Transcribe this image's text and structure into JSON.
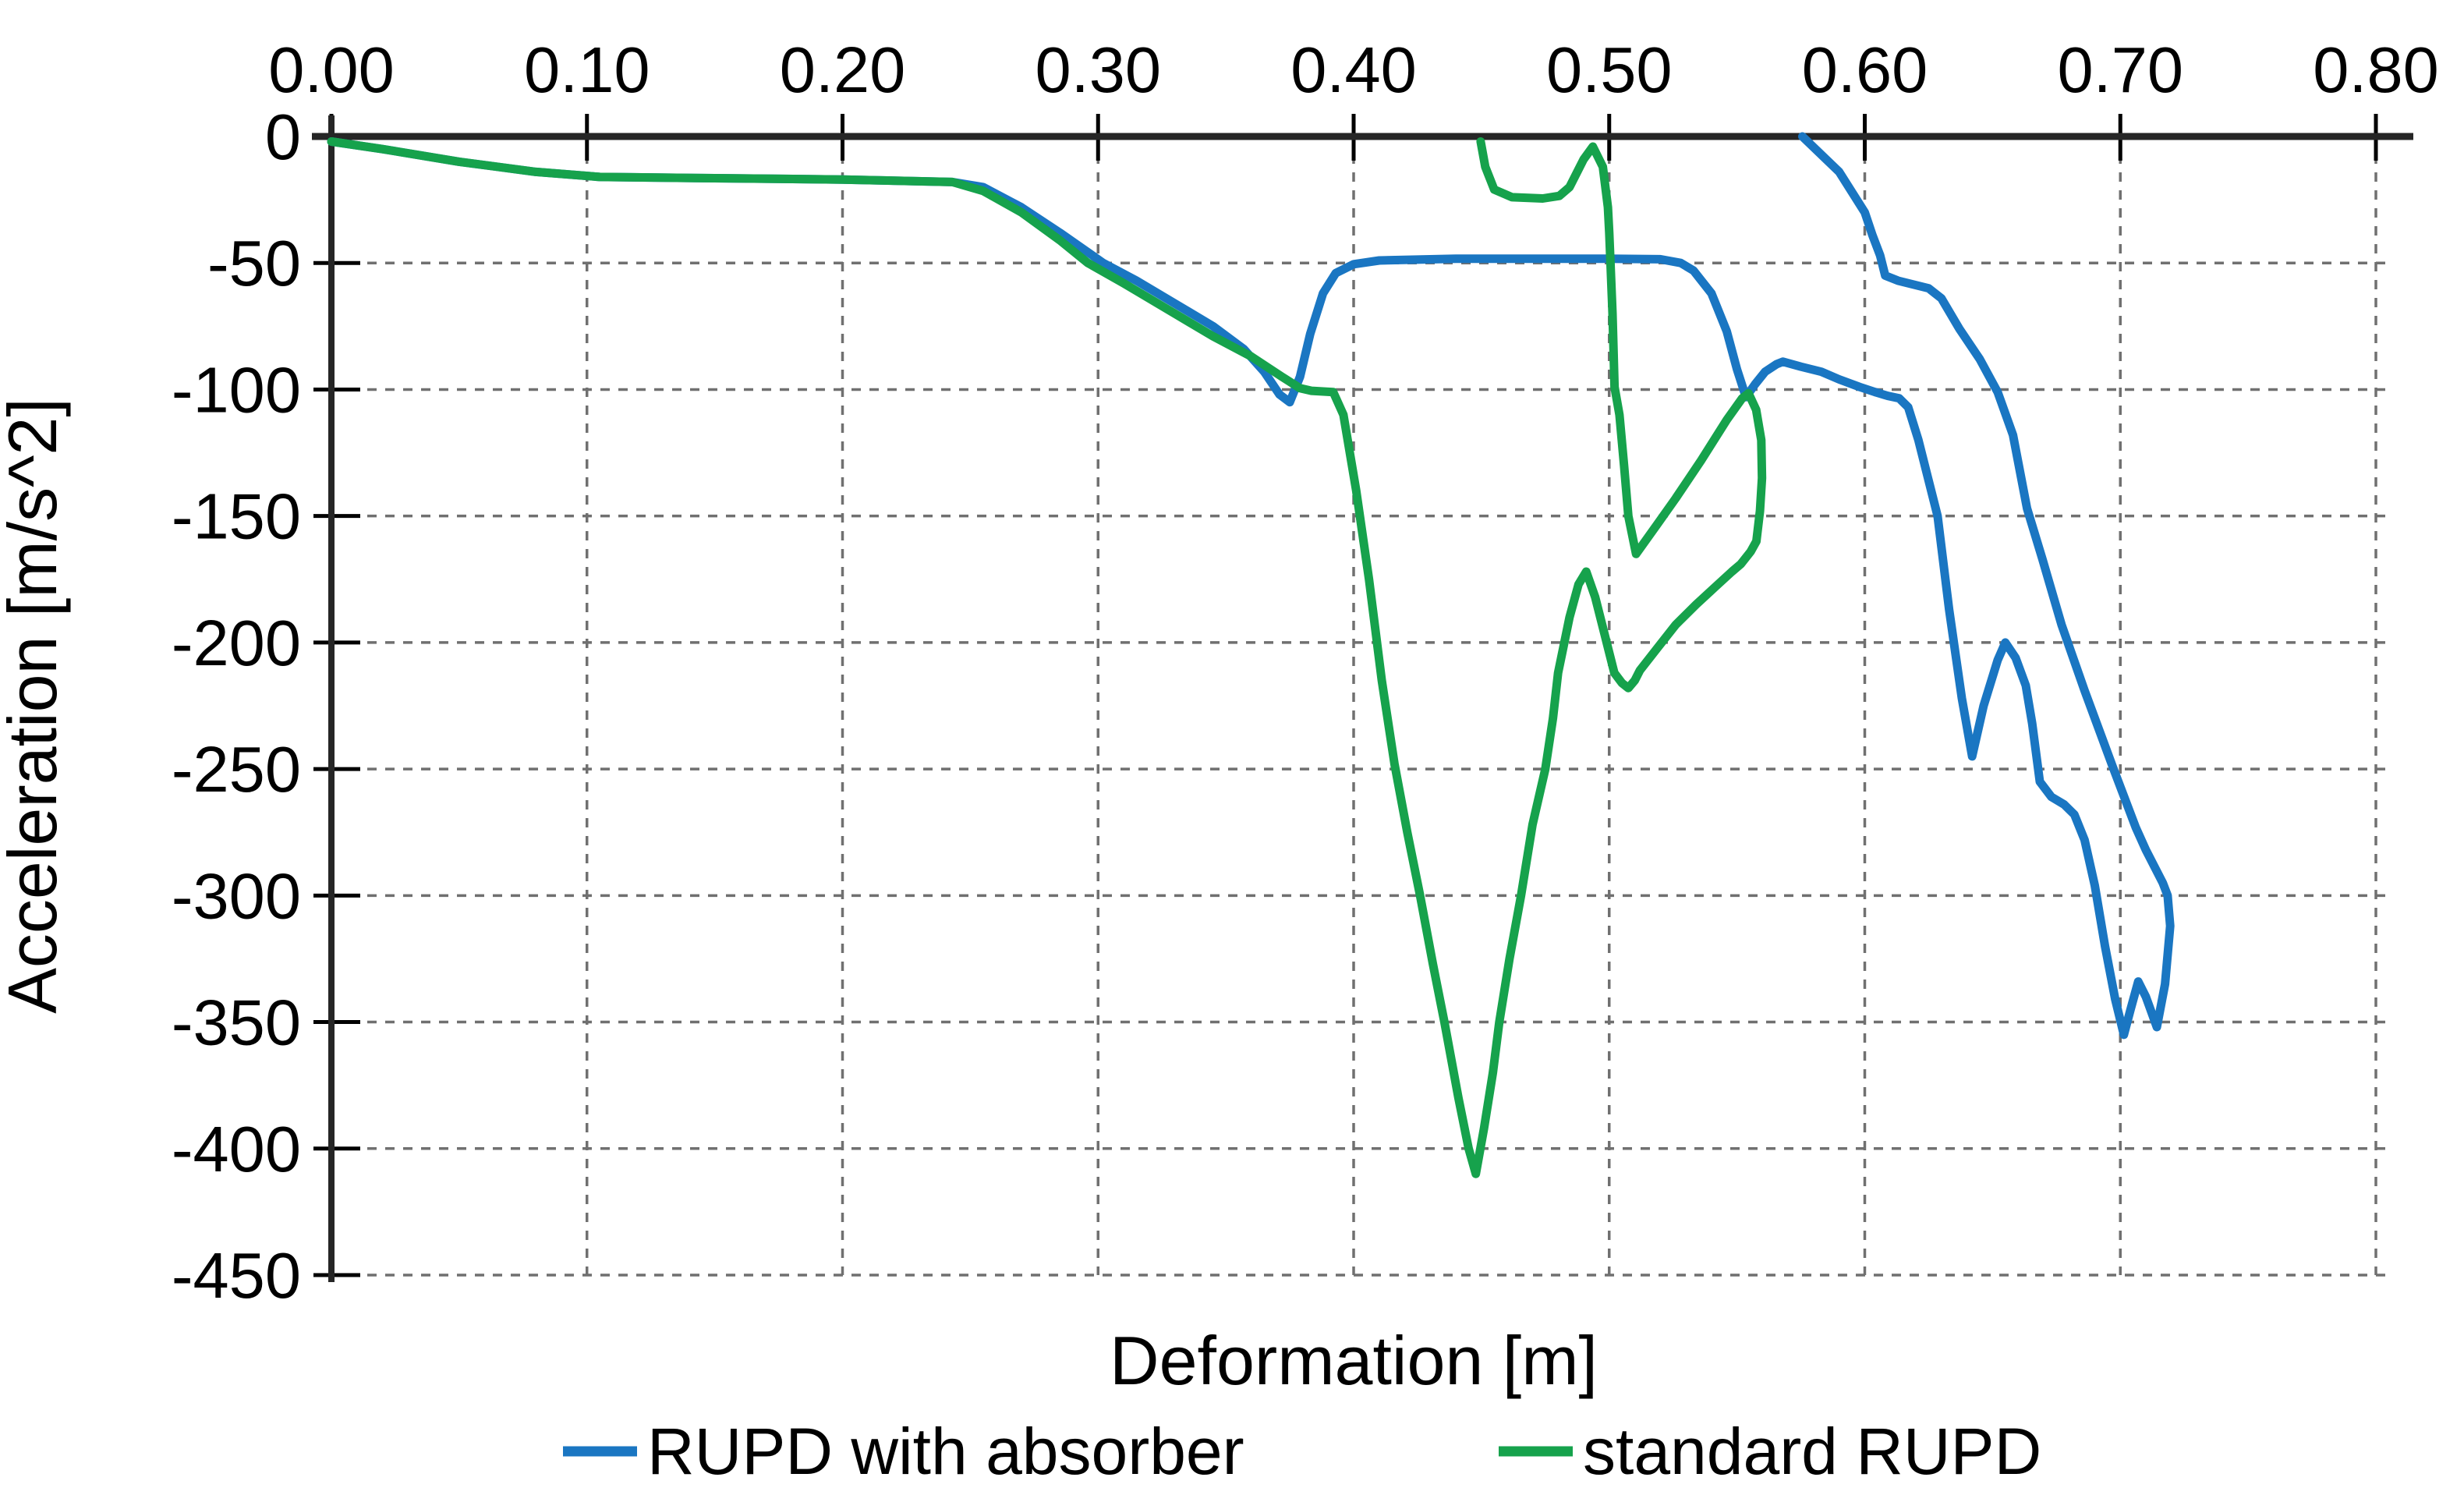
{
  "figure": {
    "background": "#ffffff",
    "grid_color": "#707070",
    "axis_color": "#262626",
    "tick_color": "#000000"
  },
  "chart_data": {
    "type": "line",
    "title": "",
    "xlabel": "Deformation [m]",
    "ylabel": "Acceleration [m/s^2]",
    "xlim": [
      0.0,
      0.8
    ],
    "ylim": [
      -450,
      0
    ],
    "grid": "dashed",
    "legend_position": "bottom",
    "x_ticks": [
      {
        "v": 0.0,
        "label": "0.00"
      },
      {
        "v": 0.1,
        "label": "0.10"
      },
      {
        "v": 0.2,
        "label": "0.20"
      },
      {
        "v": 0.3,
        "label": "0.30"
      },
      {
        "v": 0.4,
        "label": "0.40"
      },
      {
        "v": 0.5,
        "label": "0.50"
      },
      {
        "v": 0.6,
        "label": "0.60"
      },
      {
        "v": 0.7,
        "label": "0.70"
      },
      {
        "v": 0.8,
        "label": "0.80"
      }
    ],
    "y_ticks": [
      {
        "v": 0,
        "label": "0"
      },
      {
        "v": -50,
        "label": "-50"
      },
      {
        "v": -100,
        "label": "-100"
      },
      {
        "v": -150,
        "label": "-150"
      },
      {
        "v": -200,
        "label": "-200"
      },
      {
        "v": -250,
        "label": "-250"
      },
      {
        "v": -300,
        "label": "-300"
      },
      {
        "v": -350,
        "label": "-350"
      },
      {
        "v": -400,
        "label": "-400"
      },
      {
        "v": -450,
        "label": "-450"
      }
    ],
    "series": [
      {
        "name": "RUPD with absorber",
        "color": "#1a76c2",
        "points": [
          [
            0.0,
            -2
          ],
          [
            0.02,
            -5
          ],
          [
            0.05,
            -10
          ],
          [
            0.08,
            -14
          ],
          [
            0.105,
            -16
          ],
          [
            0.15,
            -16.5
          ],
          [
            0.2,
            -17
          ],
          [
            0.243,
            -18
          ],
          [
            0.255,
            -20
          ],
          [
            0.27,
            -28
          ],
          [
            0.285,
            -38
          ],
          [
            0.302,
            -50
          ],
          [
            0.315,
            -57
          ],
          [
            0.33,
            -66
          ],
          [
            0.345,
            -75
          ],
          [
            0.357,
            -84
          ],
          [
            0.365,
            -93
          ],
          [
            0.371,
            -102
          ],
          [
            0.375,
            -105
          ],
          [
            0.379,
            -95
          ],
          [
            0.383,
            -78
          ],
          [
            0.388,
            -62
          ],
          [
            0.393,
            -54
          ],
          [
            0.4,
            -50.5
          ],
          [
            0.41,
            -49
          ],
          [
            0.44,
            -48.3
          ],
          [
            0.5,
            -48.3
          ],
          [
            0.52,
            -48.5
          ],
          [
            0.528,
            -50
          ],
          [
            0.533,
            -53
          ],
          [
            0.54,
            -62
          ],
          [
            0.546,
            -77
          ],
          [
            0.55,
            -92
          ],
          [
            0.5535,
            -103
          ],
          [
            0.557,
            -98
          ],
          [
            0.561,
            -93
          ],
          [
            0.5655,
            -90
          ],
          [
            0.568,
            -89
          ],
          [
            0.575,
            -91
          ],
          [
            0.583,
            -93
          ],
          [
            0.59,
            -96
          ],
          [
            0.598,
            -99
          ],
          [
            0.604,
            -101
          ],
          [
            0.609,
            -102.5
          ],
          [
            0.6135,
            -103.5
          ],
          [
            0.617,
            -107
          ],
          [
            0.621,
            -120
          ],
          [
            0.625,
            -136
          ],
          [
            0.6285,
            -150
          ],
          [
            0.633,
            -187
          ],
          [
            0.638,
            -222
          ],
          [
            0.642,
            -245
          ],
          [
            0.6465,
            -225
          ],
          [
            0.652,
            -207
          ],
          [
            0.655,
            -200
          ],
          [
            0.659,
            -206
          ],
          [
            0.663,
            -217
          ],
          [
            0.6655,
            -232
          ],
          [
            0.6685,
            -255
          ],
          [
            0.673,
            -261
          ],
          [
            0.678,
            -264
          ],
          [
            0.682,
            -268
          ],
          [
            0.686,
            -278
          ],
          [
            0.69,
            -296
          ],
          [
            0.694,
            -320
          ],
          [
            0.698,
            -341
          ],
          [
            0.7014,
            -355
          ],
          [
            0.704,
            -345
          ],
          [
            0.707,
            -334
          ],
          [
            0.71,
            -340
          ],
          [
            0.7143,
            -352
          ],
          [
            0.7175,
            -335
          ],
          [
            0.7195,
            -312
          ],
          [
            0.7185,
            -300
          ],
          [
            0.7166,
            -295
          ],
          [
            0.71,
            -282
          ],
          [
            0.706,
            -273
          ],
          [
            0.697,
            -249
          ],
          [
            0.686,
            -219
          ],
          [
            0.677,
            -193
          ],
          [
            0.6695,
            -167
          ],
          [
            0.6635,
            -147
          ],
          [
            0.658,
            -118
          ],
          [
            0.652,
            -101
          ],
          [
            0.645,
            -88
          ],
          [
            0.637,
            -76
          ],
          [
            0.63,
            -64
          ],
          [
            0.625,
            -60
          ],
          [
            0.613,
            -57
          ],
          [
            0.608,
            -55
          ],
          [
            0.606,
            -47
          ],
          [
            0.603,
            -39
          ],
          [
            0.6,
            -30
          ],
          [
            0.59,
            -14
          ],
          [
            0.5756,
            0
          ]
        ]
      },
      {
        "name": "standard RUPD",
        "color": "#16a24c",
        "points": [
          [
            0.0,
            -2
          ],
          [
            0.02,
            -5
          ],
          [
            0.05,
            -10
          ],
          [
            0.08,
            -14
          ],
          [
            0.105,
            -16
          ],
          [
            0.15,
            -16.5
          ],
          [
            0.2,
            -17
          ],
          [
            0.243,
            -18
          ],
          [
            0.255,
            -21.5
          ],
          [
            0.27,
            -30
          ],
          [
            0.285,
            -41
          ],
          [
            0.296,
            -50
          ],
          [
            0.31,
            -58
          ],
          [
            0.33,
            -70
          ],
          [
            0.345,
            -79
          ],
          [
            0.36,
            -87
          ],
          [
            0.372,
            -95
          ],
          [
            0.379,
            -99.5
          ],
          [
            0.3835,
            -100.5
          ],
          [
            0.392,
            -101
          ],
          [
            0.396,
            -110
          ],
          [
            0.401,
            -140
          ],
          [
            0.406,
            -175
          ],
          [
            0.411,
            -215
          ],
          [
            0.416,
            -248
          ],
          [
            0.421,
            -275
          ],
          [
            0.426,
            -300
          ],
          [
            0.431,
            -327
          ],
          [
            0.4355,
            -350
          ],
          [
            0.441,
            -380
          ],
          [
            0.445,
            -400
          ],
          [
            0.4478,
            -410
          ],
          [
            0.451,
            -392
          ],
          [
            0.4545,
            -370
          ],
          [
            0.457,
            -350
          ],
          [
            0.461,
            -325
          ],
          [
            0.4655,
            -300
          ],
          [
            0.47,
            -272
          ],
          [
            0.475,
            -250
          ],
          [
            0.478,
            -230
          ],
          [
            0.48,
            -212
          ],
          [
            0.4845,
            -190
          ],
          [
            0.488,
            -177
          ],
          [
            0.491,
            -172
          ],
          [
            0.4945,
            -182
          ],
          [
            0.498,
            -196
          ],
          [
            0.502,
            -212
          ],
          [
            0.505,
            -216
          ],
          [
            0.5075,
            -218
          ],
          [
            0.51,
            -215
          ],
          [
            0.512,
            -211
          ],
          [
            0.519,
            -202
          ],
          [
            0.526,
            -193
          ],
          [
            0.534,
            -185
          ],
          [
            0.5415,
            -178
          ],
          [
            0.548,
            -172
          ],
          [
            0.5515,
            -169
          ],
          [
            0.5554,
            -164
          ],
          [
            0.5576,
            -160
          ],
          [
            0.559,
            -148
          ],
          [
            0.5598,
            -135
          ],
          [
            0.5595,
            -120
          ],
          [
            0.5575,
            -108
          ],
          [
            0.5545,
            -101.5
          ],
          [
            0.552,
            -103.5
          ],
          [
            0.546,
            -112
          ],
          [
            0.536,
            -128
          ],
          [
            0.526,
            -143
          ],
          [
            0.519,
            -153
          ],
          [
            0.5105,
            -165
          ],
          [
            0.5075,
            -150
          ],
          [
            0.5058,
            -130
          ],
          [
            0.504,
            -110
          ],
          [
            0.5021,
            -99
          ],
          [
            0.5013,
            -70
          ],
          [
            0.5005,
            -50
          ],
          [
            0.5,
            -38
          ],
          [
            0.4995,
            -28
          ],
          [
            0.4975,
            -12
          ],
          [
            0.4936,
            -4
          ],
          [
            0.49,
            -9
          ],
          [
            0.4875,
            -14
          ],
          [
            0.4845,
            -20
          ],
          [
            0.4805,
            -23.5
          ],
          [
            0.474,
            -24.5
          ],
          [
            0.462,
            -24
          ],
          [
            0.455,
            -21
          ],
          [
            0.4515,
            -12
          ],
          [
            0.4497,
            -2
          ]
        ]
      }
    ]
  }
}
